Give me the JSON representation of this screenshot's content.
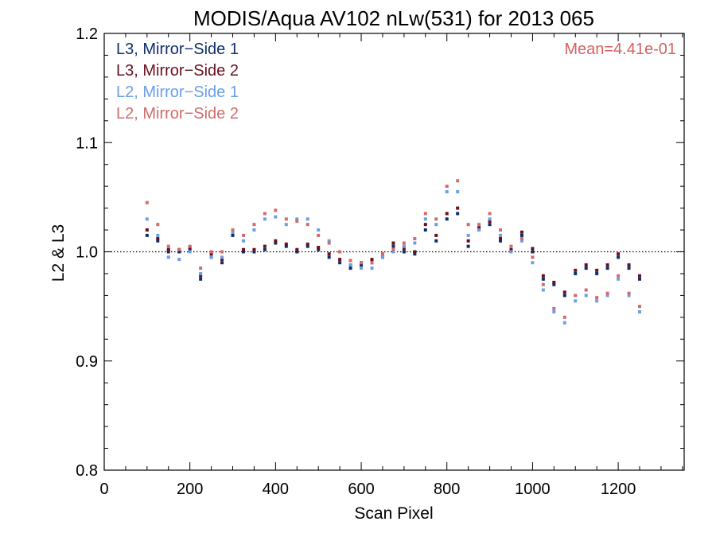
{
  "chart_data": {
    "type": "scatter",
    "title": "MODIS/Aqua AV102 nLw(531) for 2013 065",
    "xlabel": "Scan Pixel",
    "ylabel": "L2 & L3",
    "xlim": [
      0,
      1354
    ],
    "ylim": [
      0.8,
      1.2
    ],
    "xticks": [
      0,
      200,
      400,
      600,
      800,
      1000,
      1200
    ],
    "xtick_labels": [
      "0",
      "200",
      "400",
      "600",
      "800",
      "1000",
      "1200"
    ],
    "yticks": [
      0.8,
      0.9,
      1.0,
      1.1,
      1.2
    ],
    "ytick_labels": [
      "0.8",
      "0.9",
      "1.0",
      "1.1",
      "1.2"
    ],
    "reference_line": 1.0,
    "annotation": "Mean=4.41e-01",
    "annotation_color": "#d86060",
    "legend_position": "top-left",
    "series": [
      {
        "name": "L3, Mirror−Side 1",
        "color": "#0d2f6b",
        "x": [
          100,
          125,
          150,
          175,
          200,
          225,
          250,
          275,
          300,
          325,
          350,
          375,
          400,
          425,
          450,
          475,
          500,
          525,
          550,
          575,
          600,
          625,
          650,
          675,
          700,
          725,
          750,
          775,
          800,
          825,
          850,
          875,
          900,
          925,
          950,
          975,
          1000,
          1025,
          1050,
          1075,
          1100,
          1125,
          1150,
          1175,
          1200,
          1225,
          1250
        ],
        "y": [
          1.015,
          1.01,
          1.0,
          1.0,
          1.002,
          0.975,
          0.995,
          0.99,
          1.015,
          1.0,
          1.0,
          1.002,
          1.008,
          1.005,
          1.0,
          1.005,
          1.002,
          0.995,
          0.99,
          0.985,
          0.988,
          0.99,
          0.995,
          1.005,
          1.0,
          0.998,
          1.02,
          1.01,
          1.03,
          1.035,
          1.005,
          1.02,
          1.025,
          1.01,
          1.0,
          1.015,
          1.0,
          0.975,
          0.97,
          0.96,
          0.98,
          0.985,
          0.98,
          0.985,
          0.995,
          0.985,
          0.975
        ]
      },
      {
        "name": "L3, Mirror−Side 2",
        "color": "#6b0f1e",
        "x": [
          100,
          125,
          150,
          175,
          200,
          225,
          250,
          275,
          300,
          325,
          350,
          375,
          400,
          425,
          450,
          475,
          500,
          525,
          550,
          575,
          600,
          625,
          650,
          675,
          700,
          725,
          750,
          775,
          800,
          825,
          850,
          875,
          900,
          925,
          950,
          975,
          1000,
          1025,
          1050,
          1075,
          1100,
          1125,
          1150,
          1175,
          1200,
          1225,
          1250
        ],
        "y": [
          1.02,
          1.012,
          1.002,
          1.002,
          1.004,
          0.978,
          0.998,
          0.993,
          1.018,
          1.002,
          1.002,
          1.005,
          1.01,
          1.007,
          1.002,
          1.007,
          1.004,
          0.998,
          0.993,
          0.988,
          0.99,
          0.993,
          0.998,
          1.008,
          1.003,
          1.0,
          1.025,
          1.015,
          1.035,
          1.04,
          1.01,
          1.022,
          1.028,
          1.012,
          1.002,
          1.018,
          1.003,
          0.978,
          0.972,
          0.963,
          0.983,
          0.988,
          0.983,
          0.988,
          0.998,
          0.988,
          0.978
        ]
      },
      {
        "name": "L2, Mirror−Side 1",
        "color": "#6a9fe8",
        "x": [
          100,
          125,
          150,
          175,
          200,
          225,
          250,
          275,
          300,
          325,
          350,
          375,
          400,
          425,
          450,
          475,
          500,
          525,
          550,
          575,
          600,
          625,
          650,
          675,
          700,
          725,
          750,
          775,
          800,
          825,
          850,
          875,
          900,
          925,
          950,
          975,
          1000,
          1025,
          1050,
          1075,
          1100,
          1125,
          1150,
          1175,
          1200,
          1225,
          1250
        ],
        "y": [
          1.03,
          1.015,
          0.995,
          0.993,
          1.0,
          0.98,
          0.995,
          0.995,
          1.018,
          1.01,
          1.02,
          1.03,
          1.032,
          1.025,
          1.03,
          1.03,
          1.02,
          1.01,
          1.0,
          0.988,
          0.985,
          0.985,
          0.995,
          1.0,
          1.005,
          1.008,
          1.03,
          1.025,
          1.055,
          1.055,
          1.015,
          1.02,
          1.03,
          1.015,
          1.0,
          1.01,
          0.99,
          0.965,
          0.945,
          0.935,
          0.955,
          0.96,
          0.955,
          0.96,
          0.975,
          0.96,
          0.945
        ]
      },
      {
        "name": "L2, Mirror−Side 2",
        "color": "#d06c6c",
        "x": [
          100,
          125,
          150,
          175,
          200,
          225,
          250,
          275,
          300,
          325,
          350,
          375,
          400,
          425,
          450,
          475,
          500,
          525,
          550,
          575,
          600,
          625,
          650,
          675,
          700,
          725,
          750,
          775,
          800,
          825,
          850,
          875,
          900,
          925,
          950,
          975,
          1000,
          1025,
          1050,
          1075,
          1100,
          1125,
          1150,
          1175,
          1200,
          1225,
          1250
        ],
        "y": [
          1.045,
          1.025,
          1.005,
          1.002,
          1.005,
          0.985,
          1.0,
          1.0,
          1.02,
          1.015,
          1.025,
          1.035,
          1.038,
          1.03,
          1.028,
          1.025,
          1.015,
          1.008,
          1.0,
          0.992,
          0.99,
          0.99,
          0.998,
          1.002,
          1.008,
          1.012,
          1.035,
          1.03,
          1.06,
          1.065,
          1.025,
          1.025,
          1.035,
          1.02,
          1.005,
          1.012,
          0.995,
          0.97,
          0.948,
          0.94,
          0.96,
          0.965,
          0.958,
          0.962,
          0.978,
          0.962,
          0.95
        ]
      }
    ]
  }
}
